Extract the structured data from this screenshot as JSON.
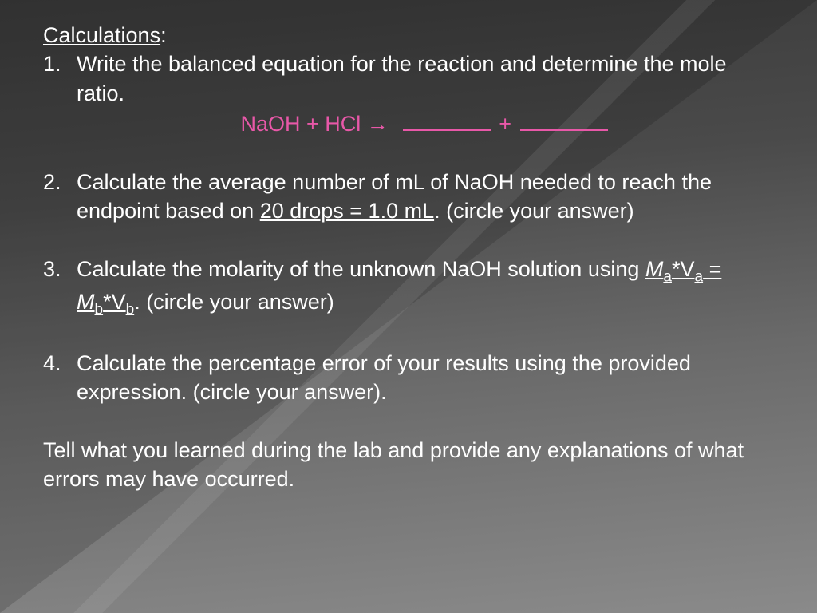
{
  "slide": {
    "background_gradient_start": "#3a3a3a",
    "background_gradient_end": "#8a8a8a",
    "text_color": "#ffffff",
    "accent_color": "#e858a8",
    "font_size_body": 27,
    "heading": "Calculations",
    "items": [
      {
        "num": "1.",
        "text": "Write the balanced equation for the reaction and determine the mole ratio."
      },
      {
        "num": "2.",
        "text_before": "Calculate the average number of mL of NaOH needed to reach the endpoint based on ",
        "underlined": "20 drops = 1.0 mL",
        "text_after": ". (circle your answer)"
      },
      {
        "num": "3.",
        "text_before": "Calculate the molarity of the unknown NaOH solution using ",
        "formula_m1": "M",
        "formula_sub1": "a",
        "formula_star1": "*V",
        "formula_sub2": "a",
        "formula_eq": " = ",
        "formula_m2": "M",
        "formula_sub3": "b",
        "formula_star2": "*V",
        "formula_sub4": "b",
        "text_after": ". (circle your answer)"
      },
      {
        "num": "4.",
        "text": "Calculate the percentage error of your results using the provided expression. (circle your answer)."
      }
    ],
    "equation": {
      "reactants": "NaOH + HCl ",
      "arrow": "→",
      "plus": " + "
    },
    "footer": "Tell what you learned during the lab and provide any explanations of what errors may have occurred."
  }
}
